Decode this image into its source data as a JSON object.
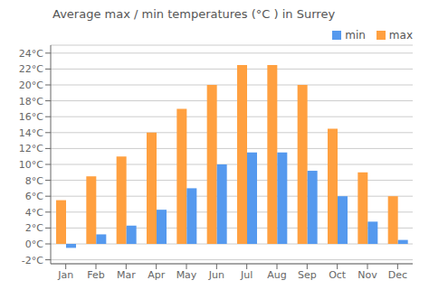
{
  "chart_data": {
    "type": "bar",
    "title": "Average max / min temperatures (°C ) in Surrey",
    "categories": [
      "Jan",
      "Feb",
      "Mar",
      "Apr",
      "May",
      "Jun",
      "Jul",
      "Aug",
      "Sep",
      "Oct",
      "Nov",
      "Dec"
    ],
    "series": [
      {
        "name": "max",
        "color": "#FFA040",
        "values": [
          5.5,
          8.5,
          11.0,
          14.0,
          17.0,
          20.0,
          22.5,
          22.5,
          20.0,
          14.5,
          9.0,
          6.0
        ]
      },
      {
        "name": "min",
        "color": "#5599EE",
        "values": [
          -0.5,
          1.2,
          2.3,
          4.3,
          7.0,
          10.0,
          11.5,
          11.5,
          9.2,
          6.0,
          2.8,
          0.5
        ]
      }
    ],
    "ylim": [
      -2.5,
      25
    ],
    "yticks": [
      {
        "value": -2,
        "label": "-2°C"
      },
      {
        "value": 0,
        "label": "0°C"
      },
      {
        "value": 2,
        "label": "2°C"
      },
      {
        "value": 4,
        "label": "4°C"
      },
      {
        "value": 6,
        "label": "6°C"
      },
      {
        "value": 8,
        "label": "8°C"
      },
      {
        "value": 10,
        "label": "10°C"
      },
      {
        "value": 12,
        "label": "12°C"
      },
      {
        "value": 14,
        "label": "14°C"
      },
      {
        "value": 16,
        "label": "16°C"
      },
      {
        "value": 18,
        "label": "18°C"
      },
      {
        "value": 20,
        "label": "20°C"
      },
      {
        "value": 22,
        "label": "22°C"
      },
      {
        "value": 24,
        "label": "24°C"
      }
    ],
    "grid": true,
    "legend": "upper right"
  }
}
